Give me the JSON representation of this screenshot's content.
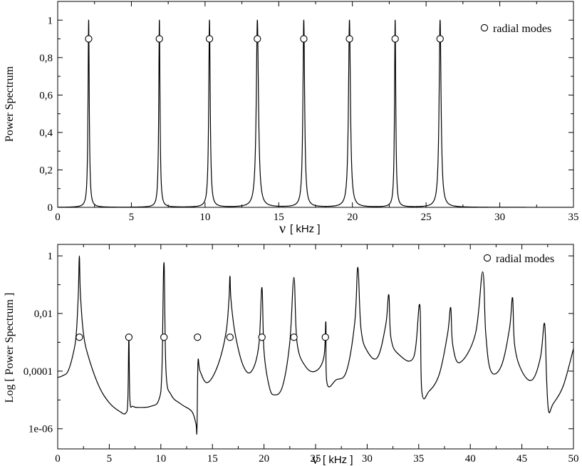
{
  "chart_data": [
    {
      "type": "line",
      "xlabel_symbol": "ν",
      "xlabel_unit": "[ kHz ]",
      "ylabel": "Power Spectrum",
      "xlim": [
        0,
        35
      ],
      "ylim": [
        0,
        1.1
      ],
      "x_ticks": [
        0,
        5,
        10,
        15,
        20,
        25,
        30,
        35
      ],
      "x_tick_labels": [
        "0",
        "5",
        "10",
        "15",
        "20",
        "25",
        "30",
        "35"
      ],
      "y_ticks": [
        0,
        0.2,
        0.4,
        0.6,
        0.8,
        1
      ],
      "y_tick_labels": [
        "0",
        "0,2",
        "0,4",
        "0,6",
        "0,8",
        "1"
      ],
      "legend": {
        "label": "radial modes",
        "position": "top-right"
      },
      "peaks": [
        {
          "freq": 2.1,
          "width": 0.05
        },
        {
          "freq": 6.9,
          "width": 0.05
        },
        {
          "freq": 10.3,
          "width": 0.06
        },
        {
          "freq": 13.55,
          "width": 0.09
        },
        {
          "freq": 16.7,
          "width": 0.07
        },
        {
          "freq": 19.8,
          "width": 0.08
        },
        {
          "freq": 22.9,
          "width": 0.05
        },
        {
          "freq": 25.95,
          "width": 0.08
        }
      ],
      "series": [
        {
          "name": "radial modes",
          "x": [
            2.1,
            6.9,
            10.3,
            13.55,
            16.7,
            19.8,
            22.9,
            25.95
          ],
          "y": [
            0.9,
            0.9,
            0.9,
            0.9,
            0.9,
            0.9,
            0.9,
            0.9
          ]
        }
      ]
    },
    {
      "type": "line",
      "xlabel_symbol": "ν",
      "xlabel_unit": "[ kHz ]",
      "ylabel": "Log [ Power Spectrum ]",
      "yscale": "log",
      "xlim": [
        0,
        50
      ],
      "ylim": [
        2e-07,
        2.5
      ],
      "x_ticks": [
        0,
        5,
        10,
        15,
        20,
        25,
        30,
        35,
        40,
        45,
        50
      ],
      "x_tick_labels": [
        "0",
        "5",
        "10",
        "15",
        "20",
        "25",
        "30",
        "35",
        "40",
        "45",
        "50"
      ],
      "y_ticks": [
        1e-06,
        0.0001,
        0.01,
        1
      ],
      "y_tick_labels": [
        "1e-06",
        "0,0001",
        "0,01",
        "1"
      ],
      "legend": {
        "label": "radial modes",
        "position": "top-right"
      },
      "curve_points": [
        [
          0,
          6e-05
        ],
        [
          0.5,
          7e-05
        ],
        [
          1.0,
          0.0001
        ],
        [
          1.5,
          0.0004
        ],
        [
          1.8,
          0.002
        ],
        [
          2.0,
          0.05
        ],
        [
          2.1,
          1.0
        ],
        [
          2.2,
          0.05
        ],
        [
          2.5,
          0.002
        ],
        [
          3.0,
          0.0003
        ],
        [
          4.0,
          3e-05
        ],
        [
          5.0,
          8e-06
        ],
        [
          6.0,
          4e-06
        ],
        [
          6.6,
          3.5e-06
        ],
        [
          6.8,
          1e-05
        ],
        [
          6.9,
          0.0015
        ],
        [
          7.0,
          1e-05
        ],
        [
          7.3,
          6e-06
        ],
        [
          8.0,
          5.5e-06
        ],
        [
          9.0,
          6e-06
        ],
        [
          9.8,
          1e-05
        ],
        [
          10.1,
          0.0001
        ],
        [
          10.3,
          0.6
        ],
        [
          10.5,
          0.0001
        ],
        [
          11.0,
          1.5e-05
        ],
        [
          12.0,
          7e-06
        ],
        [
          13.0,
          4e-06
        ],
        [
          13.4,
          1.5e-06
        ],
        [
          13.5,
          9e-07
        ],
        [
          13.6,
          0.0002
        ],
        [
          13.8,
          0.0001
        ],
        [
          14.5,
          4e-05
        ],
        [
          15.5,
          0.00015
        ],
        [
          16.3,
          0.002
        ],
        [
          16.6,
          0.03
        ],
        [
          16.7,
          0.2
        ],
        [
          16.8,
          0.03
        ],
        [
          17.2,
          0.002
        ],
        [
          18.0,
          0.00015
        ],
        [
          18.8,
          0.0001
        ],
        [
          19.5,
          0.0008
        ],
        [
          19.8,
          0.08
        ],
        [
          20.0,
          0.0005
        ],
        [
          20.5,
          3e-05
        ],
        [
          21.0,
          1.5e-05
        ],
        [
          21.8,
          3e-05
        ],
        [
          22.5,
          0.001
        ],
        [
          22.9,
          0.18
        ],
        [
          23.2,
          0.001
        ],
        [
          24.0,
          0.00015
        ],
        [
          25.0,
          0.0001
        ],
        [
          25.8,
          0.0003
        ],
        [
          26.0,
          0.005
        ],
        [
          26.1,
          4e-05
        ],
        [
          27.0,
          5e-05
        ],
        [
          28.0,
          0.0001
        ],
        [
          28.8,
          0.005
        ],
        [
          29.1,
          0.4
        ],
        [
          29.4,
          0.003
        ],
        [
          30.0,
          0.0005
        ],
        [
          31.0,
          0.0003
        ],
        [
          31.8,
          0.004
        ],
        [
          32.1,
          0.045
        ],
        [
          32.3,
          0.0015
        ],
        [
          33.0,
          0.0004
        ],
        [
          34.5,
          0.0003
        ],
        [
          35.1,
          0.02
        ],
        [
          35.3,
          2e-05
        ],
        [
          36.0,
          2e-05
        ],
        [
          37.0,
          8e-05
        ],
        [
          37.8,
          0.002
        ],
        [
          38.1,
          0.016
        ],
        [
          38.3,
          0.0008
        ],
        [
          39.0,
          0.0002
        ],
        [
          40.5,
          0.002
        ],
        [
          41.2,
          0.28
        ],
        [
          41.5,
          0.002
        ],
        [
          42.0,
          0.0001
        ],
        [
          43.0,
          0.00015
        ],
        [
          43.8,
          0.003
        ],
        [
          44.1,
          0.035
        ],
        [
          44.3,
          0.0008
        ],
        [
          45.0,
          0.0001
        ],
        [
          46.0,
          5e-05
        ],
        [
          46.8,
          0.0003
        ],
        [
          47.2,
          0.0045
        ],
        [
          47.4,
          5e-05
        ],
        [
          47.6,
          4e-06
        ],
        [
          48.0,
          7e-06
        ],
        [
          49.0,
          3e-05
        ],
        [
          50,
          0.0006
        ]
      ],
      "series": [
        {
          "name": "radial modes",
          "x": [
            2.1,
            6.9,
            10.3,
            13.55,
            16.7,
            19.8,
            22.9,
            25.95
          ],
          "y": [
            0.0015,
            0.0015,
            0.0015,
            0.0015,
            0.0015,
            0.0015,
            0.0015,
            0.0015
          ]
        }
      ]
    }
  ]
}
